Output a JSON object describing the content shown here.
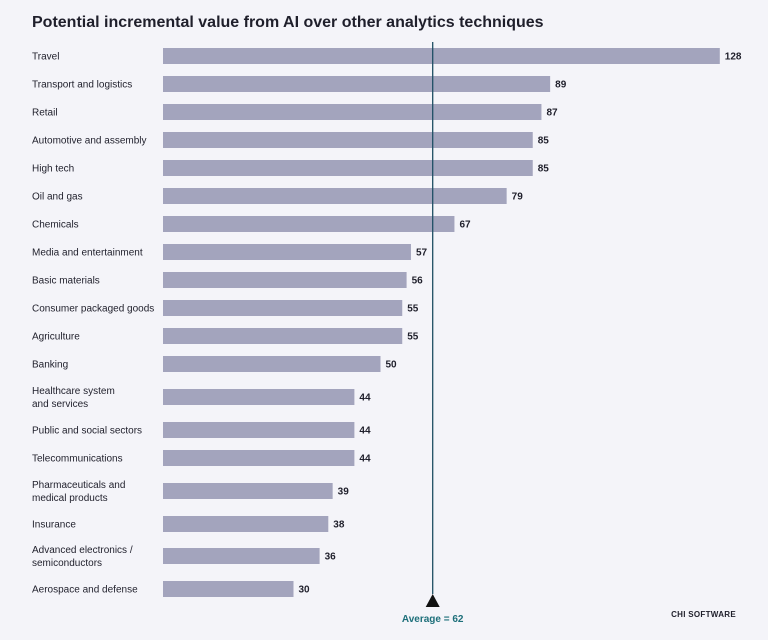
{
  "title": "Potential incremental value from AI over other analytics techniques",
  "brand": "CHI SOFTWARE",
  "colors": {
    "bar": "#a3a4bd",
    "average_line": "#1d4e63",
    "average_label": "#1d6f7a",
    "marker": "#111111"
  },
  "chart_data": {
    "type": "bar",
    "orientation": "horizontal",
    "title": "Potential incremental value from AI over other analytics techniques",
    "categories": [
      "Travel",
      "Transport and logistics",
      "Retail",
      "Automotive and assembly",
      "High tech",
      "Oil and gas",
      "Chemicals",
      "Media and entertainment",
      "Basic materials",
      "Consumer packaged goods",
      "Agriculture",
      "Banking",
      "Healthcare system\nand services",
      "Public and social sectors",
      "Telecommunications",
      "Pharmaceuticals and\nmedical products",
      "Insurance",
      "Advanced electronics /\nsemiconductors",
      "Aerospace and defense"
    ],
    "values": [
      128,
      89,
      87,
      85,
      85,
      79,
      67,
      57,
      56,
      55,
      55,
      50,
      44,
      44,
      44,
      39,
      38,
      36,
      30
    ],
    "average": {
      "value": 62,
      "label": "Average = 62"
    },
    "xlim": [
      0,
      128
    ],
    "grid": false,
    "legend": "none"
  }
}
